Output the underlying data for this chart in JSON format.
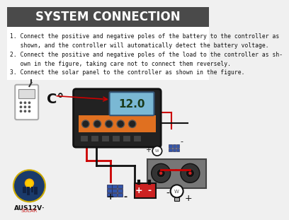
{
  "title": "SYSTEM CONNECTION",
  "title_bg": "#4a4a4a",
  "title_color": "#ffffff",
  "body_bg": "#f0f0f0",
  "instructions": [
    "1. Connect the positive and negative poles of the battery to the controller as shown, and the controller will automatically detect the battery voltage.",
    "2. Connect the positive and negative poles of the load to the controller as shown in the figure, taking care not to connect them reversely.",
    "3. Connect the solar panel to the controller as shown in the figure."
  ],
  "wire_red": "#cc0000",
  "wire_black": "#111111",
  "controller_body": "#222222",
  "controller_orange": "#e07020",
  "lcd_color": "#7ab8d4",
  "logo_circle_color": "#1a3a6b",
  "logo_text": "AUS12V·",
  "logo_subtext": "SOLAR"
}
